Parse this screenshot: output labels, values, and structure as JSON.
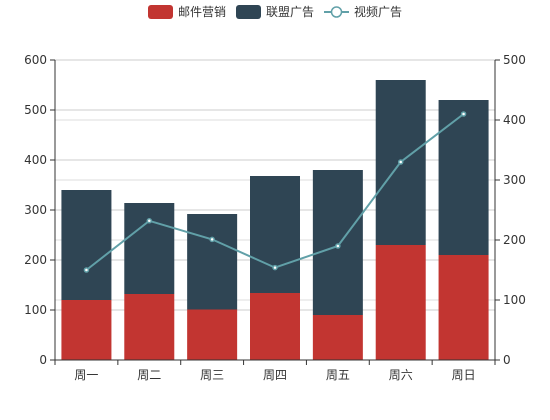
{
  "chart_data": {
    "type": "bar",
    "categories": [
      "周一",
      "周二",
      "周三",
      "周四",
      "周五",
      "周六",
      "周日"
    ],
    "series": [
      {
        "name": "邮件营销",
        "type": "bar",
        "stack": true,
        "axis": "left",
        "color": "#c23531",
        "values": [
          120,
          132,
          101,
          134,
          90,
          230,
          210
        ]
      },
      {
        "name": "联盟广告",
        "type": "bar",
        "stack": true,
        "axis": "left",
        "color": "#2f4554",
        "values": [
          220,
          182,
          191,
          234,
          290,
          330,
          310
        ]
      },
      {
        "name": "视频广告",
        "type": "line",
        "axis": "right",
        "color": "#61a0a8",
        "values": [
          150,
          232,
          201,
          154,
          190,
          330,
          410
        ]
      }
    ],
    "y_left": {
      "min": 0,
      "max": 600,
      "ticks": [
        0,
        100,
        200,
        300,
        400,
        500,
        600
      ]
    },
    "y_right": {
      "min": 0,
      "max": 500,
      "ticks": [
        0,
        100,
        200,
        300,
        400,
        500
      ]
    },
    "grid": true,
    "legend_position": "top-center"
  }
}
